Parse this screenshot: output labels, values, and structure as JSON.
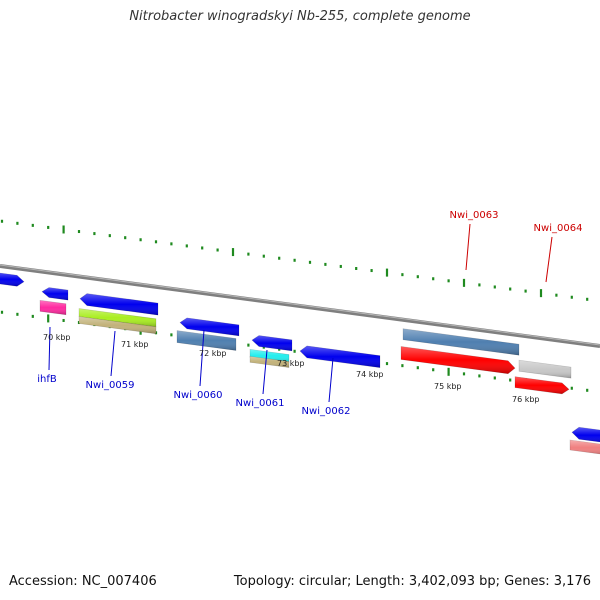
{
  "title": "Nitrobacter winogradskyi Nb-255, complete genome",
  "footer": {
    "accession": "Accession: NC_007406",
    "summary": "Topology: circular; Length: 3,402,093 bp; Genes: 3,176"
  },
  "colors": {
    "backbone": "#7f7f7f",
    "tick": "#1f8a1f",
    "label_forward": "#0000cc",
    "label_reverse": "#cc0000",
    "blue": "#0000ee",
    "steel": "#4f7fb0",
    "red": "#ff0000",
    "gray": "#c8c8c8",
    "pink": "#ff2aa0",
    "lime": "#aaee22",
    "tan": "#c2b27a",
    "cyan": "#22eeee",
    "salmon": "#f08080"
  },
  "ruler": [
    {
      "label": "70 kbp"
    },
    {
      "label": "71 kbp"
    },
    {
      "label": "72 kbp"
    },
    {
      "label": "73 kbp"
    },
    {
      "label": "74 kbp"
    },
    {
      "label": "75 kbp"
    },
    {
      "label": "76 kbp"
    }
  ],
  "gene_labels": [
    {
      "label": "ihfB",
      "strand": "forward"
    },
    {
      "label": "Nwi_0059",
      "strand": "forward"
    },
    {
      "label": "Nwi_0060",
      "strand": "forward"
    },
    {
      "label": "Nwi_0061",
      "strand": "forward"
    },
    {
      "label": "Nwi_0062",
      "strand": "forward"
    },
    {
      "label": "Nwi_0063",
      "strand": "reverse"
    },
    {
      "label": "Nwi_0064",
      "strand": "reverse"
    }
  ]
}
